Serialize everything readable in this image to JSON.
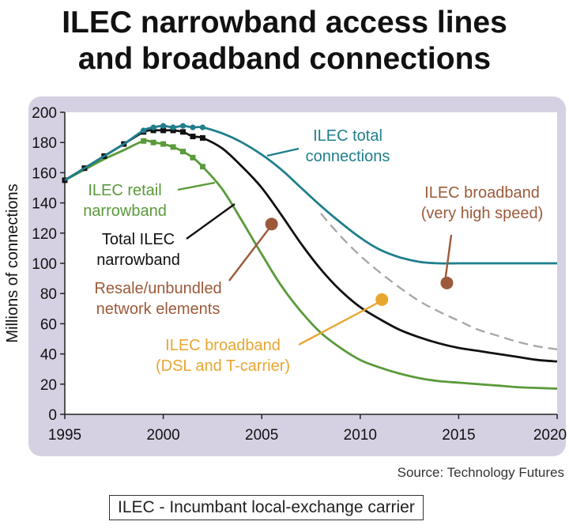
{
  "title": [
    "ILEC narrowband access lines",
    "and broadband connections"
  ],
  "source": "Source: Technology Futures",
  "footnote": "ILEC - Incumbant local-exchange carrier",
  "colors": {
    "total_connections": "#1f7f8c",
    "total_narrowband": "#111111",
    "retail_narrowband": "#5a9a3a",
    "broadband_vhs": "#e0e0e0",
    "resale": "#9c5a3a",
    "broadband_dsl": "#e8a631",
    "panel": "#d6d1e2"
  },
  "chart_data": {
    "type": "line",
    "title": "ILEC narrowband access lines and broadband connections",
    "xlabel": "",
    "ylabel": "Millions of connections",
    "xlim": [
      1995,
      2020
    ],
    "ylim": [
      0,
      200
    ],
    "xticks": [
      1995,
      2000,
      2005,
      2010,
      2015,
      2020
    ],
    "yticks": [
      0,
      20,
      40,
      60,
      80,
      100,
      120,
      140,
      160,
      180,
      200
    ],
    "grid": false,
    "series": [
      {
        "name": "ILEC total connections",
        "color_key": "total_connections",
        "dash": false,
        "x": [
          1995,
          1996,
          1997,
          1998,
          1999,
          1999.5,
          2000,
          2000.5,
          2001,
          2001.5,
          2002,
          2003,
          2004,
          2005,
          2006,
          2007,
          2008,
          2009,
          2010,
          2011,
          2012,
          2013,
          2014,
          2015,
          2016,
          2017,
          2018,
          2019,
          2020
        ],
        "y": [
          155,
          163,
          171,
          179,
          188,
          190,
          191,
          190,
          191,
          190,
          190,
          186,
          180,
          172,
          162,
          150,
          138,
          127,
          117,
          109,
          104,
          101,
          100,
          100,
          100,
          100,
          100,
          100,
          100
        ],
        "markers_x": [
          1999,
          1999.5,
          2000,
          2000.5,
          2001,
          2001.5,
          2002
        ]
      },
      {
        "name": "Total ILEC narrowband",
        "color_key": "total_narrowband",
        "dash": false,
        "x": [
          1995,
          1996,
          1997,
          1998,
          1999,
          1999.5,
          2000,
          2000.5,
          2001,
          2001.5,
          2002,
          2003,
          2004,
          2005,
          2006,
          2007,
          2008,
          2009,
          2010,
          2011,
          2012,
          2013,
          2014,
          2015,
          2016,
          2017,
          2018,
          2019,
          2020
        ],
        "y": [
          155,
          163,
          171,
          179,
          187,
          188,
          188,
          188,
          187,
          184,
          183,
          176,
          164,
          150,
          132,
          113,
          96,
          82,
          71,
          63,
          56,
          51,
          47,
          44,
          42,
          40,
          38,
          36,
          35
        ],
        "markers_x": [
          1995,
          1996,
          1997,
          1998,
          1999,
          1999.5,
          2000,
          2000.5,
          2001,
          2001.5,
          2002
        ]
      },
      {
        "name": "ILEC retail narrowband",
        "color_key": "retail_narrowband",
        "dash": false,
        "x": [
          1995,
          1996,
          1997,
          1998,
          1999,
          1999.5,
          2000,
          2000.5,
          2001,
          2001.5,
          2002,
          2003,
          2004,
          2005,
          2006,
          2007,
          2008,
          2009,
          2010,
          2011,
          2012,
          2013,
          2014,
          2015,
          2016,
          2017,
          2018,
          2019,
          2020
        ],
        "y": [
          155,
          162,
          169,
          175,
          181,
          180,
          179,
          177,
          174,
          170,
          164,
          149,
          128,
          106,
          85,
          68,
          54,
          44,
          36,
          31,
          27,
          24,
          22,
          21,
          20,
          19,
          18,
          17.5,
          17
        ],
        "markers_x": [
          1999,
          1999.5,
          2000,
          2000.5,
          2001,
          2001.5,
          2002
        ]
      },
      {
        "name": "ILEC broadband (very high speed)",
        "color_key": "broadband_vhs",
        "dash": true,
        "x": [
          2008,
          2009,
          2010,
          2011,
          2012,
          2013,
          2014,
          2015,
          2016,
          2017,
          2018,
          2019,
          2020
        ],
        "y": [
          133,
          118,
          105,
          94,
          84,
          75,
          68,
          62,
          56,
          52,
          48,
          45,
          43
        ],
        "markers_x": []
      }
    ],
    "annotations": [
      {
        "text": [
          "ILEC total",
          "connections"
        ],
        "color_key": "total_connections"
      },
      {
        "text": [
          "ILEC retail",
          "narrowband"
        ],
        "color_key": "retail_narrowband"
      },
      {
        "text": [
          "Total ILEC",
          "narrowband"
        ],
        "color_key": "total_narrowband"
      },
      {
        "text": [
          "Resale/unbundled",
          "network elements"
        ],
        "color_key": "resale",
        "dot_x": 2005.5,
        "dot_y": 126
      },
      {
        "text": [
          "ILEC broadband",
          "(very high speed)"
        ],
        "color_key": "resale",
        "dot_x": 2014.4,
        "dot_y": 87
      },
      {
        "text": [
          "ILEC broadband",
          "(DSL and T-carrier)"
        ],
        "color_key": "broadband_dsl",
        "dot_x": 2011.1,
        "dot_y": 76
      }
    ]
  }
}
